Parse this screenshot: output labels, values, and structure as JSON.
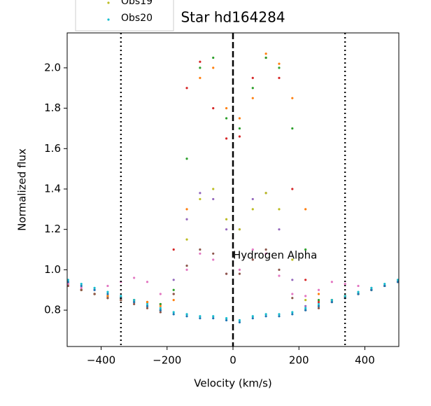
{
  "chart_data": {
    "type": "scatter",
    "title": "Star hd164284",
    "x_label": "Velocity (km/s)",
    "y_label": "Normalized flux",
    "annotation": {
      "text": "Hydrogen Alpha",
      "x": 0,
      "y": 1.07
    },
    "vlines": [
      {
        "value": -340,
        "style": "dotted"
      },
      {
        "value": 0,
        "style": "dashed"
      },
      {
        "value": 340,
        "style": "dotted"
      }
    ],
    "xlim": [
      -503,
      503
    ],
    "ylim": [
      0.62,
      2.173
    ],
    "xticks": [
      {
        "value": -400,
        "label": "−400"
      },
      {
        "value": -200,
        "label": "−200"
      },
      0,
      200,
      400
    ],
    "yticks": [
      0.8,
      {
        "value": 1,
        "label": "1.0"
      },
      1.2,
      1.4,
      1.6,
      1.8,
      {
        "value": 2,
        "label": "2.0"
      }
    ],
    "x": [
      -500,
      -460,
      -420,
      -380,
      -340,
      -300,
      -260,
      -220,
      -180,
      -140,
      -100,
      -60,
      -20,
      20,
      60,
      100,
      140,
      180,
      220,
      260,
      300,
      340,
      380,
      420,
      460,
      500
    ],
    "series": [
      {
        "color": "#d62728",
        "values": [
          0.93,
          0.9,
          0.88,
          0.87,
          0.86,
          0.85,
          0.84,
          0.83,
          1.1,
          1.9,
          2.03,
          1.8,
          1.65,
          1.66,
          1.95,
          2.05,
          1.95,
          1.4,
          0.95,
          0.84,
          0.85,
          0.87,
          0.88,
          0.9,
          0.92,
          0.94
        ]
      },
      {
        "color": "#2ca02c",
        "values": [
          0.93,
          0.9,
          0.88,
          0.87,
          0.86,
          0.85,
          0.84,
          0.83,
          0.9,
          1.55,
          2.0,
          2.05,
          1.75,
          1.7,
          1.9,
          2.05,
          2.0,
          1.7,
          1.1,
          0.85,
          0.85,
          0.87,
          0.88,
          0.9,
          0.92,
          0.94
        ]
      },
      {
        "color": "#ff7f0e",
        "values": [
          0.93,
          0.9,
          0.88,
          0.87,
          0.86,
          0.85,
          0.84,
          0.82,
          0.85,
          1.3,
          1.95,
          2.0,
          1.8,
          1.75,
          1.85,
          2.07,
          2.02,
          1.85,
          1.3,
          0.88,
          0.85,
          0.87,
          0.88,
          0.9,
          0.92,
          0.94
        ]
      },
      {
        "color": "#9467bd",
        "values": [
          0.93,
          0.9,
          0.88,
          0.86,
          0.85,
          0.84,
          0.82,
          0.8,
          0.95,
          1.25,
          1.38,
          1.35,
          1.2,
          1.2,
          1.35,
          1.38,
          1.2,
          0.95,
          0.82,
          0.82,
          0.84,
          0.86,
          0.88,
          0.9,
          0.92,
          0.94
        ]
      },
      {
        "name": "Obs19",
        "color": "#bcbd22",
        "values": [
          0.93,
          0.9,
          0.88,
          0.86,
          0.85,
          0.84,
          0.82,
          0.8,
          0.88,
          1.15,
          1.35,
          1.4,
          1.25,
          1.2,
          1.3,
          1.38,
          1.3,
          1.05,
          0.85,
          0.82,
          0.84,
          0.86,
          0.88,
          0.9,
          0.92,
          0.94
        ]
      },
      {
        "color": "#e377c2",
        "values": [
          0.93,
          0.91,
          0.9,
          0.92,
          0.94,
          0.96,
          0.94,
          0.88,
          0.88,
          1.0,
          1.08,
          1.05,
          0.98,
          1.0,
          1.1,
          1.08,
          0.97,
          0.88,
          0.87,
          0.9,
          0.94,
          0.93,
          0.92,
          0.91,
          0.92,
          0.94
        ]
      },
      {
        "color": "#8c564b",
        "values": [
          0.92,
          0.9,
          0.88,
          0.86,
          0.85,
          0.83,
          0.81,
          0.79,
          0.88,
          1.02,
          1.1,
          1.08,
          0.98,
          0.98,
          1.05,
          1.1,
          1.0,
          0.86,
          0.8,
          0.81,
          0.84,
          0.86,
          0.88,
          0.9,
          0.92,
          0.94
        ]
      },
      {
        "color": "#1f77b4",
        "values": [
          0.94,
          0.92,
          0.9,
          0.88,
          0.86,
          0.84,
          0.82,
          0.8,
          0.78,
          0.77,
          0.76,
          0.76,
          0.75,
          0.74,
          0.76,
          0.77,
          0.77,
          0.78,
          0.8,
          0.82,
          0.84,
          0.86,
          0.88,
          0.9,
          0.92,
          0.94
        ]
      },
      {
        "name": "Obs20",
        "color": "#17becf",
        "values": [
          0.95,
          0.93,
          0.91,
          0.89,
          0.87,
          0.85,
          0.83,
          0.81,
          0.79,
          0.78,
          0.77,
          0.77,
          0.76,
          0.75,
          0.77,
          0.78,
          0.78,
          0.79,
          0.81,
          0.83,
          0.85,
          0.87,
          0.89,
          0.91,
          0.93,
          0.95
        ]
      }
    ]
  }
}
